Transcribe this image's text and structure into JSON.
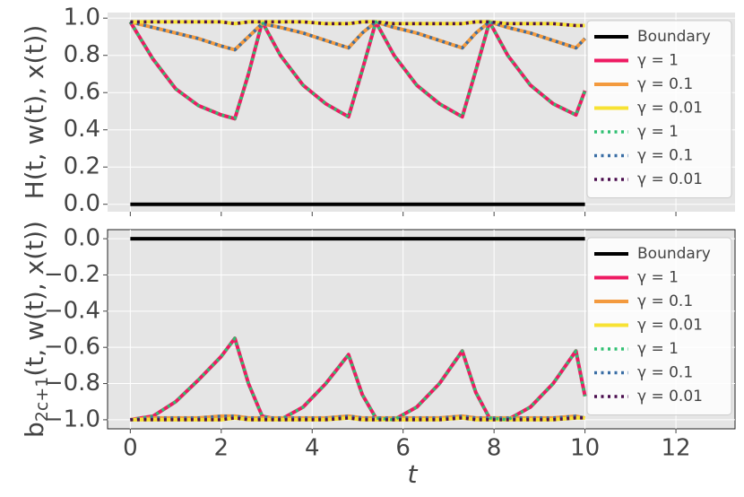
{
  "chart_data": [
    {
      "type": "line",
      "ylabel": {
        "base": "H(t, w(t), x(t))"
      },
      "x": [
        0,
        0.5,
        1,
        1.5,
        2,
        2.3,
        2.6,
        2.9,
        3.3,
        3.8,
        4.3,
        4.8,
        5.1,
        5.4,
        5.8,
        6.3,
        6.8,
        7.3,
        7.6,
        7.9,
        8.3,
        8.8,
        9.3,
        9.8,
        10
      ],
      "xlim": [
        -0.5,
        13.3
      ],
      "xticks": [
        0,
        2,
        4,
        6,
        8,
        10,
        12
      ],
      "show_xticklabels": false,
      "ylim": [
        -0.04,
        1.03
      ],
      "yticks": [
        {
          "value": 0,
          "label": "0.0"
        },
        0.2,
        0.4,
        0.6,
        0.8,
        {
          "value": 1,
          "label": "1.0"
        }
      ],
      "grid": true,
      "legend": "upper right",
      "series": [
        {
          "name": "Boundary",
          "color": "#000000",
          "style": "solid",
          "values": [
            0,
            0,
            0,
            0,
            0,
            0,
            0,
            0,
            0,
            0,
            0,
            0,
            0,
            0,
            0,
            0,
            0,
            0,
            0,
            0,
            0,
            0,
            0,
            0,
            0
          ]
        },
        {
          "name": "γ = 1",
          "color": "#ee1a62",
          "style": "solid",
          "values": [
            0.98,
            0.78,
            0.62,
            0.53,
            0.48,
            0.46,
            0.7,
            0.98,
            0.8,
            0.64,
            0.54,
            0.47,
            0.72,
            0.98,
            0.8,
            0.64,
            0.54,
            0.47,
            0.72,
            0.98,
            0.8,
            0.64,
            0.54,
            0.48,
            0.61
          ]
        },
        {
          "name": "γ = 0.1",
          "color": "#f39a3e",
          "style": "solid",
          "values": [
            0.98,
            0.95,
            0.92,
            0.89,
            0.85,
            0.83,
            0.9,
            0.97,
            0.95,
            0.92,
            0.88,
            0.84,
            0.92,
            0.98,
            0.95,
            0.92,
            0.88,
            0.84,
            0.92,
            0.98,
            0.95,
            0.92,
            0.88,
            0.84,
            0.89
          ]
        },
        {
          "name": "γ = 0.01",
          "color": "#f7e233",
          "style": "solid",
          "values": [
            0.98,
            0.98,
            0.98,
            0.98,
            0.98,
            0.97,
            0.98,
            0.98,
            0.98,
            0.98,
            0.97,
            0.97,
            0.98,
            0.98,
            0.97,
            0.97,
            0.97,
            0.97,
            0.98,
            0.98,
            0.97,
            0.97,
            0.97,
            0.96,
            0.96
          ]
        },
        {
          "name": "γ = 1",
          "color": "#2fbf71",
          "style": "dotted",
          "values": [
            0.98,
            0.78,
            0.62,
            0.53,
            0.48,
            0.46,
            0.7,
            0.98,
            0.8,
            0.64,
            0.54,
            0.47,
            0.72,
            0.98,
            0.8,
            0.64,
            0.54,
            0.47,
            0.72,
            0.98,
            0.8,
            0.64,
            0.54,
            0.48,
            0.61
          ]
        },
        {
          "name": "γ = 0.1",
          "color": "#3a6ea5",
          "style": "dotted",
          "values": [
            0.98,
            0.95,
            0.92,
            0.89,
            0.85,
            0.83,
            0.9,
            0.97,
            0.95,
            0.92,
            0.88,
            0.84,
            0.92,
            0.98,
            0.95,
            0.92,
            0.88,
            0.84,
            0.92,
            0.98,
            0.95,
            0.92,
            0.88,
            0.84,
            0.89
          ]
        },
        {
          "name": "γ = 0.01",
          "color": "#4a0d4e",
          "style": "dotted",
          "values": [
            0.98,
            0.98,
            0.98,
            0.98,
            0.98,
            0.97,
            0.98,
            0.98,
            0.98,
            0.98,
            0.97,
            0.97,
            0.98,
            0.98,
            0.97,
            0.97,
            0.97,
            0.97,
            0.98,
            0.98,
            0.97,
            0.97,
            0.97,
            0.96,
            0.96
          ]
        }
      ]
    },
    {
      "type": "line",
      "ylabel": {
        "base": "b",
        "sub": "2c+1",
        "rest": "(t, w(t), x(t))"
      },
      "xlabel": "t",
      "x": [
        0,
        0.5,
        1,
        1.5,
        2,
        2.3,
        2.6,
        2.9,
        3.3,
        3.8,
        4.3,
        4.8,
        5.1,
        5.4,
        5.8,
        6.3,
        6.8,
        7.3,
        7.6,
        7.9,
        8.3,
        8.8,
        9.3,
        9.8,
        10
      ],
      "xlim": [
        -0.5,
        13.3
      ],
      "xticks": [
        0,
        2,
        4,
        6,
        8,
        10,
        12
      ],
      "show_xticklabels": true,
      "ylim": [
        -1.05,
        0.05
      ],
      "yticks": [
        {
          "value": -1,
          "label": "−1.0"
        },
        {
          "value": -0.8,
          "label": "−0.8"
        },
        {
          "value": -0.6,
          "label": "−0.6"
        },
        {
          "value": -0.4,
          "label": "−0.4"
        },
        {
          "value": -0.2,
          "label": "−0.2"
        },
        {
          "value": 0,
          "label": "0.0"
        }
      ],
      "grid": true,
      "legend": "upper right",
      "series": [
        {
          "name": "Boundary",
          "color": "#000000",
          "style": "solid",
          "values": [
            0,
            0,
            0,
            0,
            0,
            0,
            0,
            0,
            0,
            0,
            0,
            0,
            0,
            0,
            0,
            0,
            0,
            0,
            0,
            0,
            0,
            0,
            0,
            0,
            0
          ]
        },
        {
          "name": "γ = 1",
          "color": "#ee1a62",
          "style": "solid",
          "values": [
            -1,
            -0.98,
            -0.9,
            -0.78,
            -0.65,
            -0.55,
            -0.8,
            -0.98,
            -1,
            -0.93,
            -0.8,
            -0.64,
            -0.86,
            -0.99,
            -1,
            -0.93,
            -0.8,
            -0.62,
            -0.85,
            -0.99,
            -1,
            -0.93,
            -0.8,
            -0.62,
            -0.87
          ]
        },
        {
          "name": "γ = 0.1",
          "color": "#f39a3e",
          "style": "solid",
          "values": [
            -1,
            -0.99,
            -0.99,
            -0.99,
            -0.98,
            -0.98,
            -0.99,
            -0.99,
            -0.99,
            -0.99,
            -0.99,
            -0.98,
            -0.99,
            -0.99,
            -0.99,
            -0.99,
            -0.99,
            -0.98,
            -0.99,
            -0.99,
            -0.99,
            -0.99,
            -0.99,
            -0.98,
            -0.99
          ]
        },
        {
          "name": "γ = 0.01",
          "color": "#f7e233",
          "style": "solid",
          "values": [
            -1,
            -1,
            -1,
            -1,
            -1,
            -0.99,
            -1,
            -1,
            -1,
            -1,
            -1,
            -0.99,
            -1,
            -1,
            -1,
            -1,
            -1,
            -0.99,
            -1,
            -1,
            -1,
            -1,
            -1,
            -0.99,
            -0.99
          ]
        },
        {
          "name": "γ = 1",
          "color": "#2fbf71",
          "style": "dotted",
          "values": [
            -1,
            -0.98,
            -0.9,
            -0.78,
            -0.65,
            -0.55,
            -0.8,
            -0.98,
            -1,
            -0.93,
            -0.8,
            -0.64,
            -0.86,
            -0.99,
            -1,
            -0.93,
            -0.8,
            -0.62,
            -0.85,
            -0.99,
            -1,
            -0.93,
            -0.8,
            -0.62,
            -0.87
          ]
        },
        {
          "name": "γ = 0.1",
          "color": "#3a6ea5",
          "style": "dotted",
          "values": [
            -1,
            -0.99,
            -0.99,
            -0.99,
            -0.98,
            -0.98,
            -0.99,
            -0.99,
            -0.99,
            -0.99,
            -0.99,
            -0.98,
            -0.99,
            -0.99,
            -0.99,
            -0.99,
            -0.99,
            -0.98,
            -0.99,
            -0.99,
            -0.99,
            -0.99,
            -0.99,
            -0.98,
            -0.99
          ]
        },
        {
          "name": "γ = 0.01",
          "color": "#4a0d4e",
          "style": "dotted",
          "values": [
            -1,
            -1,
            -1,
            -1,
            -1,
            -0.99,
            -1,
            -1,
            -1,
            -1,
            -1,
            -0.99,
            -1,
            -1,
            -1,
            -1,
            -1,
            -0.99,
            -1,
            -1,
            -1,
            -1,
            -1,
            -0.99,
            -0.99
          ]
        }
      ]
    }
  ]
}
